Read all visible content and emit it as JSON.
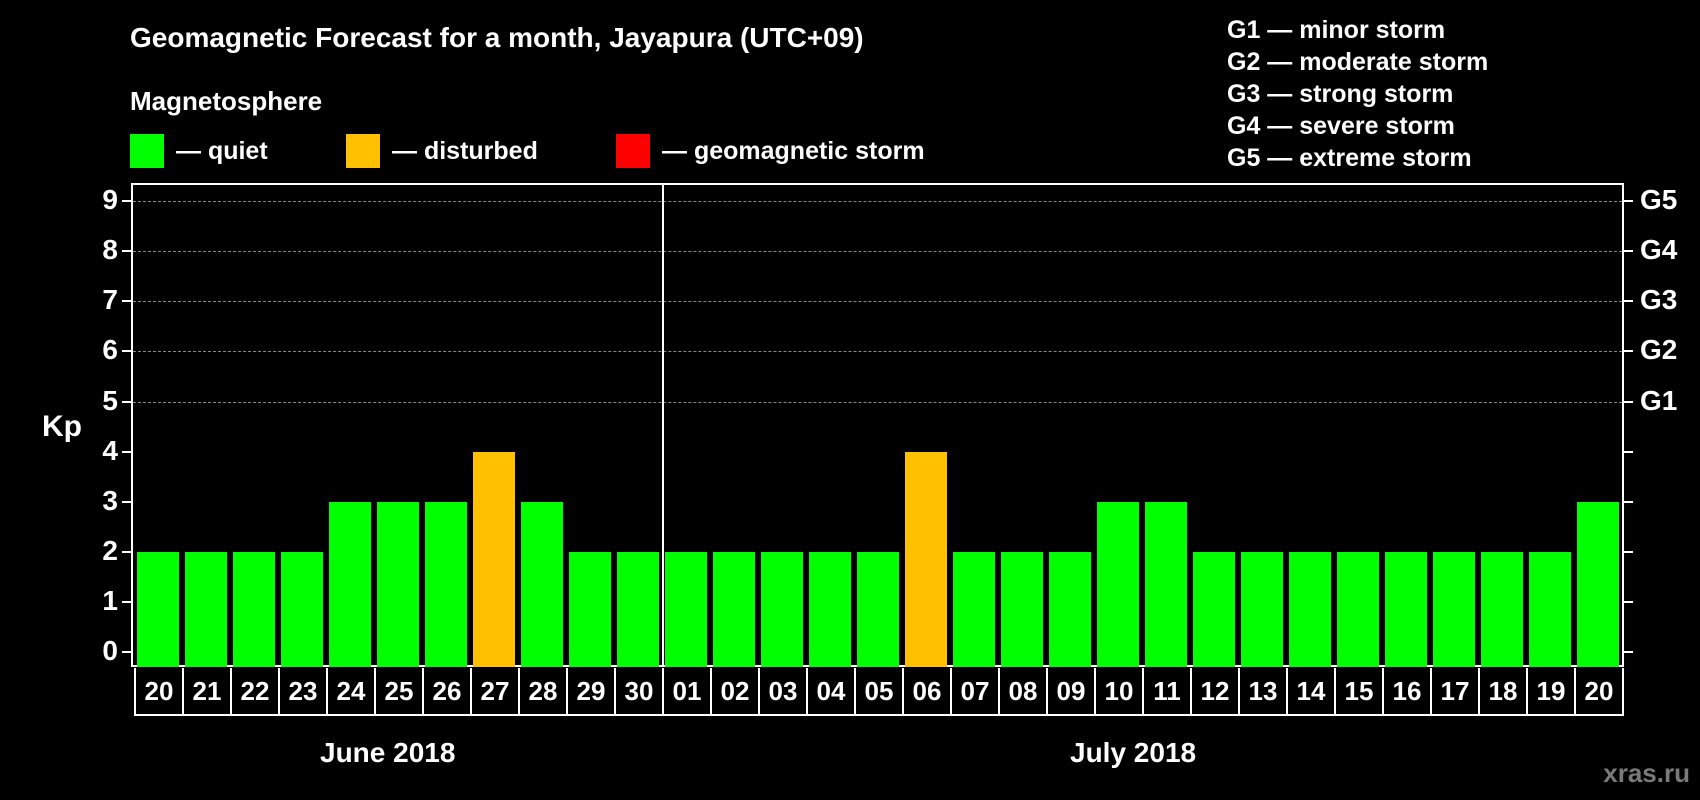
{
  "title": "Geomagnetic Forecast for a month, Jayapura (UTC+09)",
  "legend": {
    "heading": "Magnetosphere",
    "items": [
      {
        "label": "— quiet",
        "color": "#00ff00"
      },
      {
        "label": "— disturbed",
        "color": "#ffc000"
      },
      {
        "label": "— geomagnetic storm",
        "color": "#ff0000"
      }
    ]
  },
  "g_scale": [
    "G1 — minor storm",
    "G2 — moderate storm",
    "G3 — strong storm",
    "G4 — severe storm",
    "G5 — extreme storm"
  ],
  "axis": {
    "ylabel": "Kp",
    "yticks": [
      "0",
      "1",
      "2",
      "3",
      "4",
      "5",
      "6",
      "7",
      "8",
      "9"
    ],
    "right_labels": {
      "5": "G1",
      "6": "G2",
      "7": "G3",
      "8": "G4",
      "9": "G5"
    }
  },
  "months": [
    "June 2018",
    "July 2018"
  ],
  "watermark": "xras.ru",
  "chart_data": {
    "type": "bar",
    "title": "Geomagnetic Forecast for a month, Jayapura (UTC+09)",
    "xlabel": "",
    "ylabel": "Kp",
    "ylim": [
      0,
      9
    ],
    "grid": true,
    "categories": [
      "20",
      "21",
      "22",
      "23",
      "24",
      "25",
      "26",
      "27",
      "28",
      "29",
      "30",
      "01",
      "02",
      "03",
      "04",
      "05",
      "06",
      "07",
      "08",
      "09",
      "10",
      "11",
      "12",
      "13",
      "14",
      "15",
      "16",
      "17",
      "18",
      "19",
      "20"
    ],
    "full_dates": [
      "2018-06-20",
      "2018-06-21",
      "2018-06-22",
      "2018-06-23",
      "2018-06-24",
      "2018-06-25",
      "2018-06-26",
      "2018-06-27",
      "2018-06-28",
      "2018-06-29",
      "2018-06-30",
      "2018-07-01",
      "2018-07-02",
      "2018-07-03",
      "2018-07-04",
      "2018-07-05",
      "2018-07-06",
      "2018-07-07",
      "2018-07-08",
      "2018-07-09",
      "2018-07-10",
      "2018-07-11",
      "2018-07-12",
      "2018-07-13",
      "2018-07-14",
      "2018-07-15",
      "2018-07-16",
      "2018-07-17",
      "2018-07-18",
      "2018-07-19",
      "2018-07-20"
    ],
    "values": [
      2,
      2,
      2,
      2,
      3,
      3,
      3,
      4,
      3,
      2,
      2,
      2,
      2,
      2,
      2,
      2,
      4,
      2,
      2,
      2,
      3,
      3,
      2,
      2,
      2,
      2,
      2,
      2,
      2,
      2,
      3
    ],
    "status": [
      "quiet",
      "quiet",
      "quiet",
      "quiet",
      "quiet",
      "quiet",
      "quiet",
      "disturbed",
      "quiet",
      "quiet",
      "quiet",
      "quiet",
      "quiet",
      "quiet",
      "quiet",
      "quiet",
      "disturbed",
      "quiet",
      "quiet",
      "quiet",
      "quiet",
      "quiet",
      "quiet",
      "quiet",
      "quiet",
      "quiet",
      "quiet",
      "quiet",
      "quiet",
      "quiet",
      "quiet"
    ],
    "colors": {
      "quiet": "#00ff00",
      "disturbed": "#ffc000",
      "storm": "#ff0000"
    },
    "month_groups": [
      {
        "label": "June 2018",
        "days": 11
      },
      {
        "label": "July 2018",
        "days": 20
      }
    ]
  }
}
